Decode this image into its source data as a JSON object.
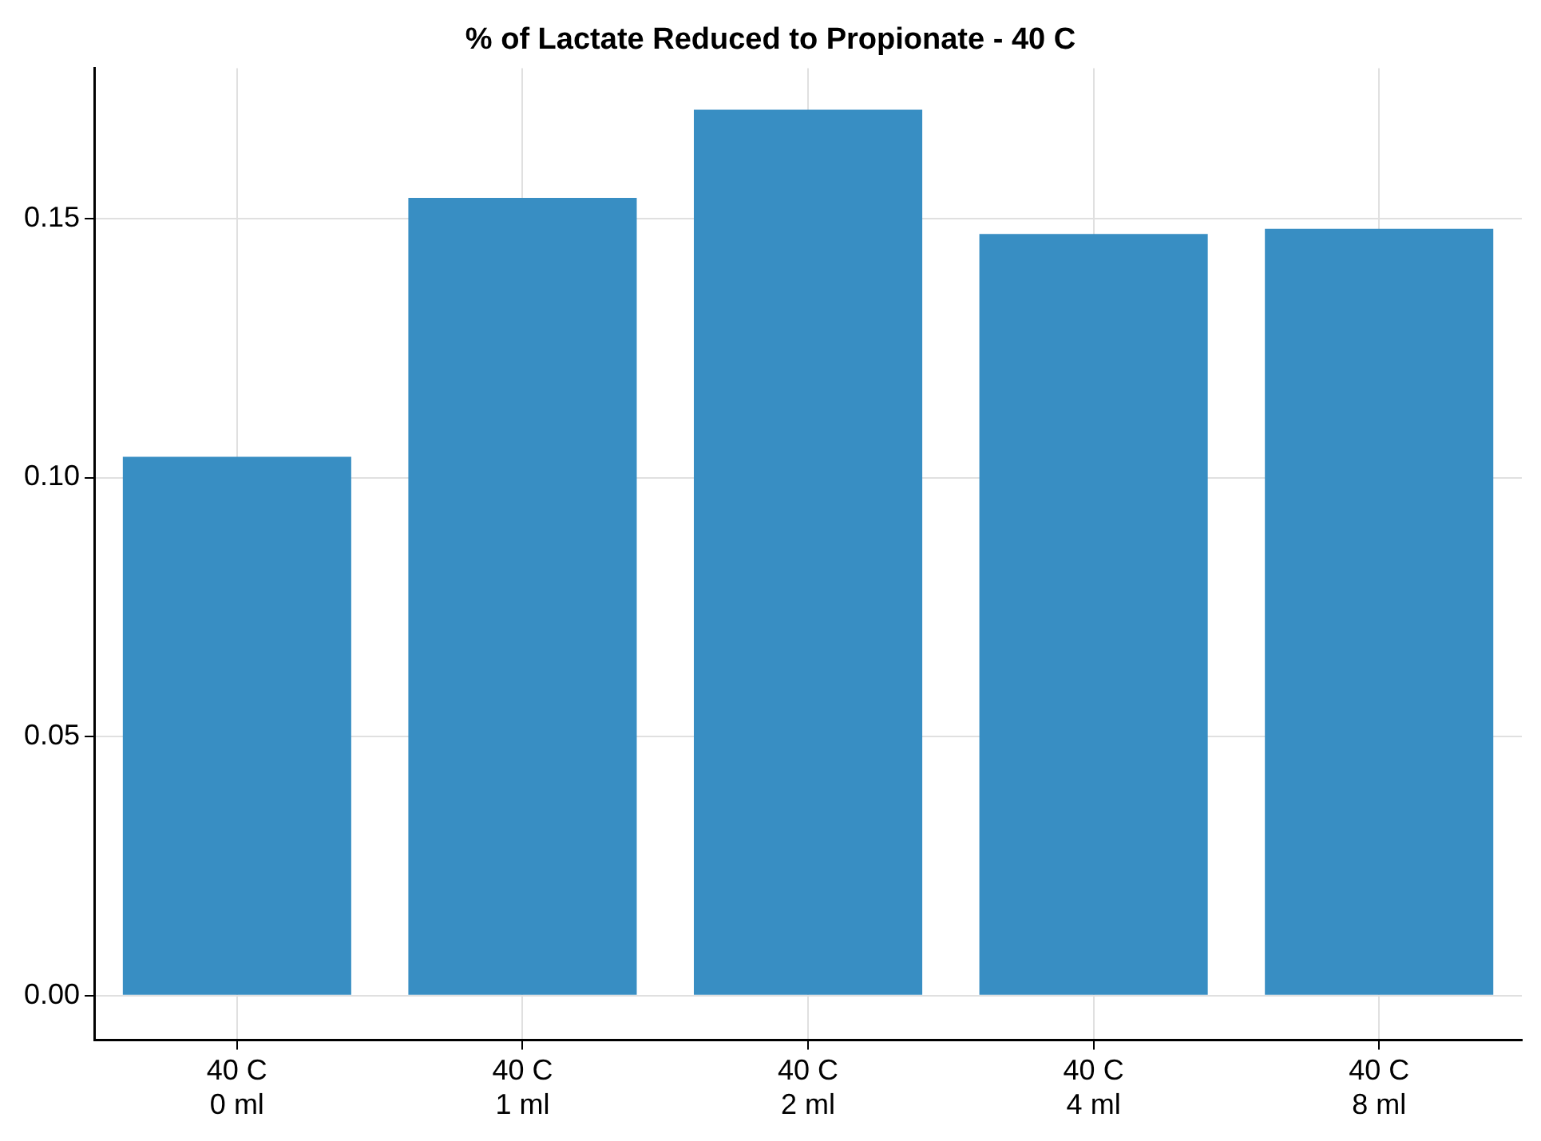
{
  "chart_data": {
    "type": "bar",
    "title": "% of Lactate Reduced to Propionate - 40 C",
    "categories": [
      "40 C\n0 ml",
      "40 C\n1 ml",
      "40 C\n2 ml",
      "40 C\n4 ml",
      "40 C\n8 ml"
    ],
    "values": [
      0.104,
      0.154,
      0.171,
      0.147,
      0.148
    ],
    "color": "#388ec3",
    "ylim": [
      -0.0086,
      0.179
    ],
    "yticks": [
      {
        "value": 0,
        "label": "0.00"
      },
      {
        "value": 0.05,
        "label": "0.05"
      },
      {
        "value": 0.1,
        "label": "0.10"
      },
      {
        "value": 0.15,
        "label": "0.15"
      }
    ],
    "grid": true
  }
}
